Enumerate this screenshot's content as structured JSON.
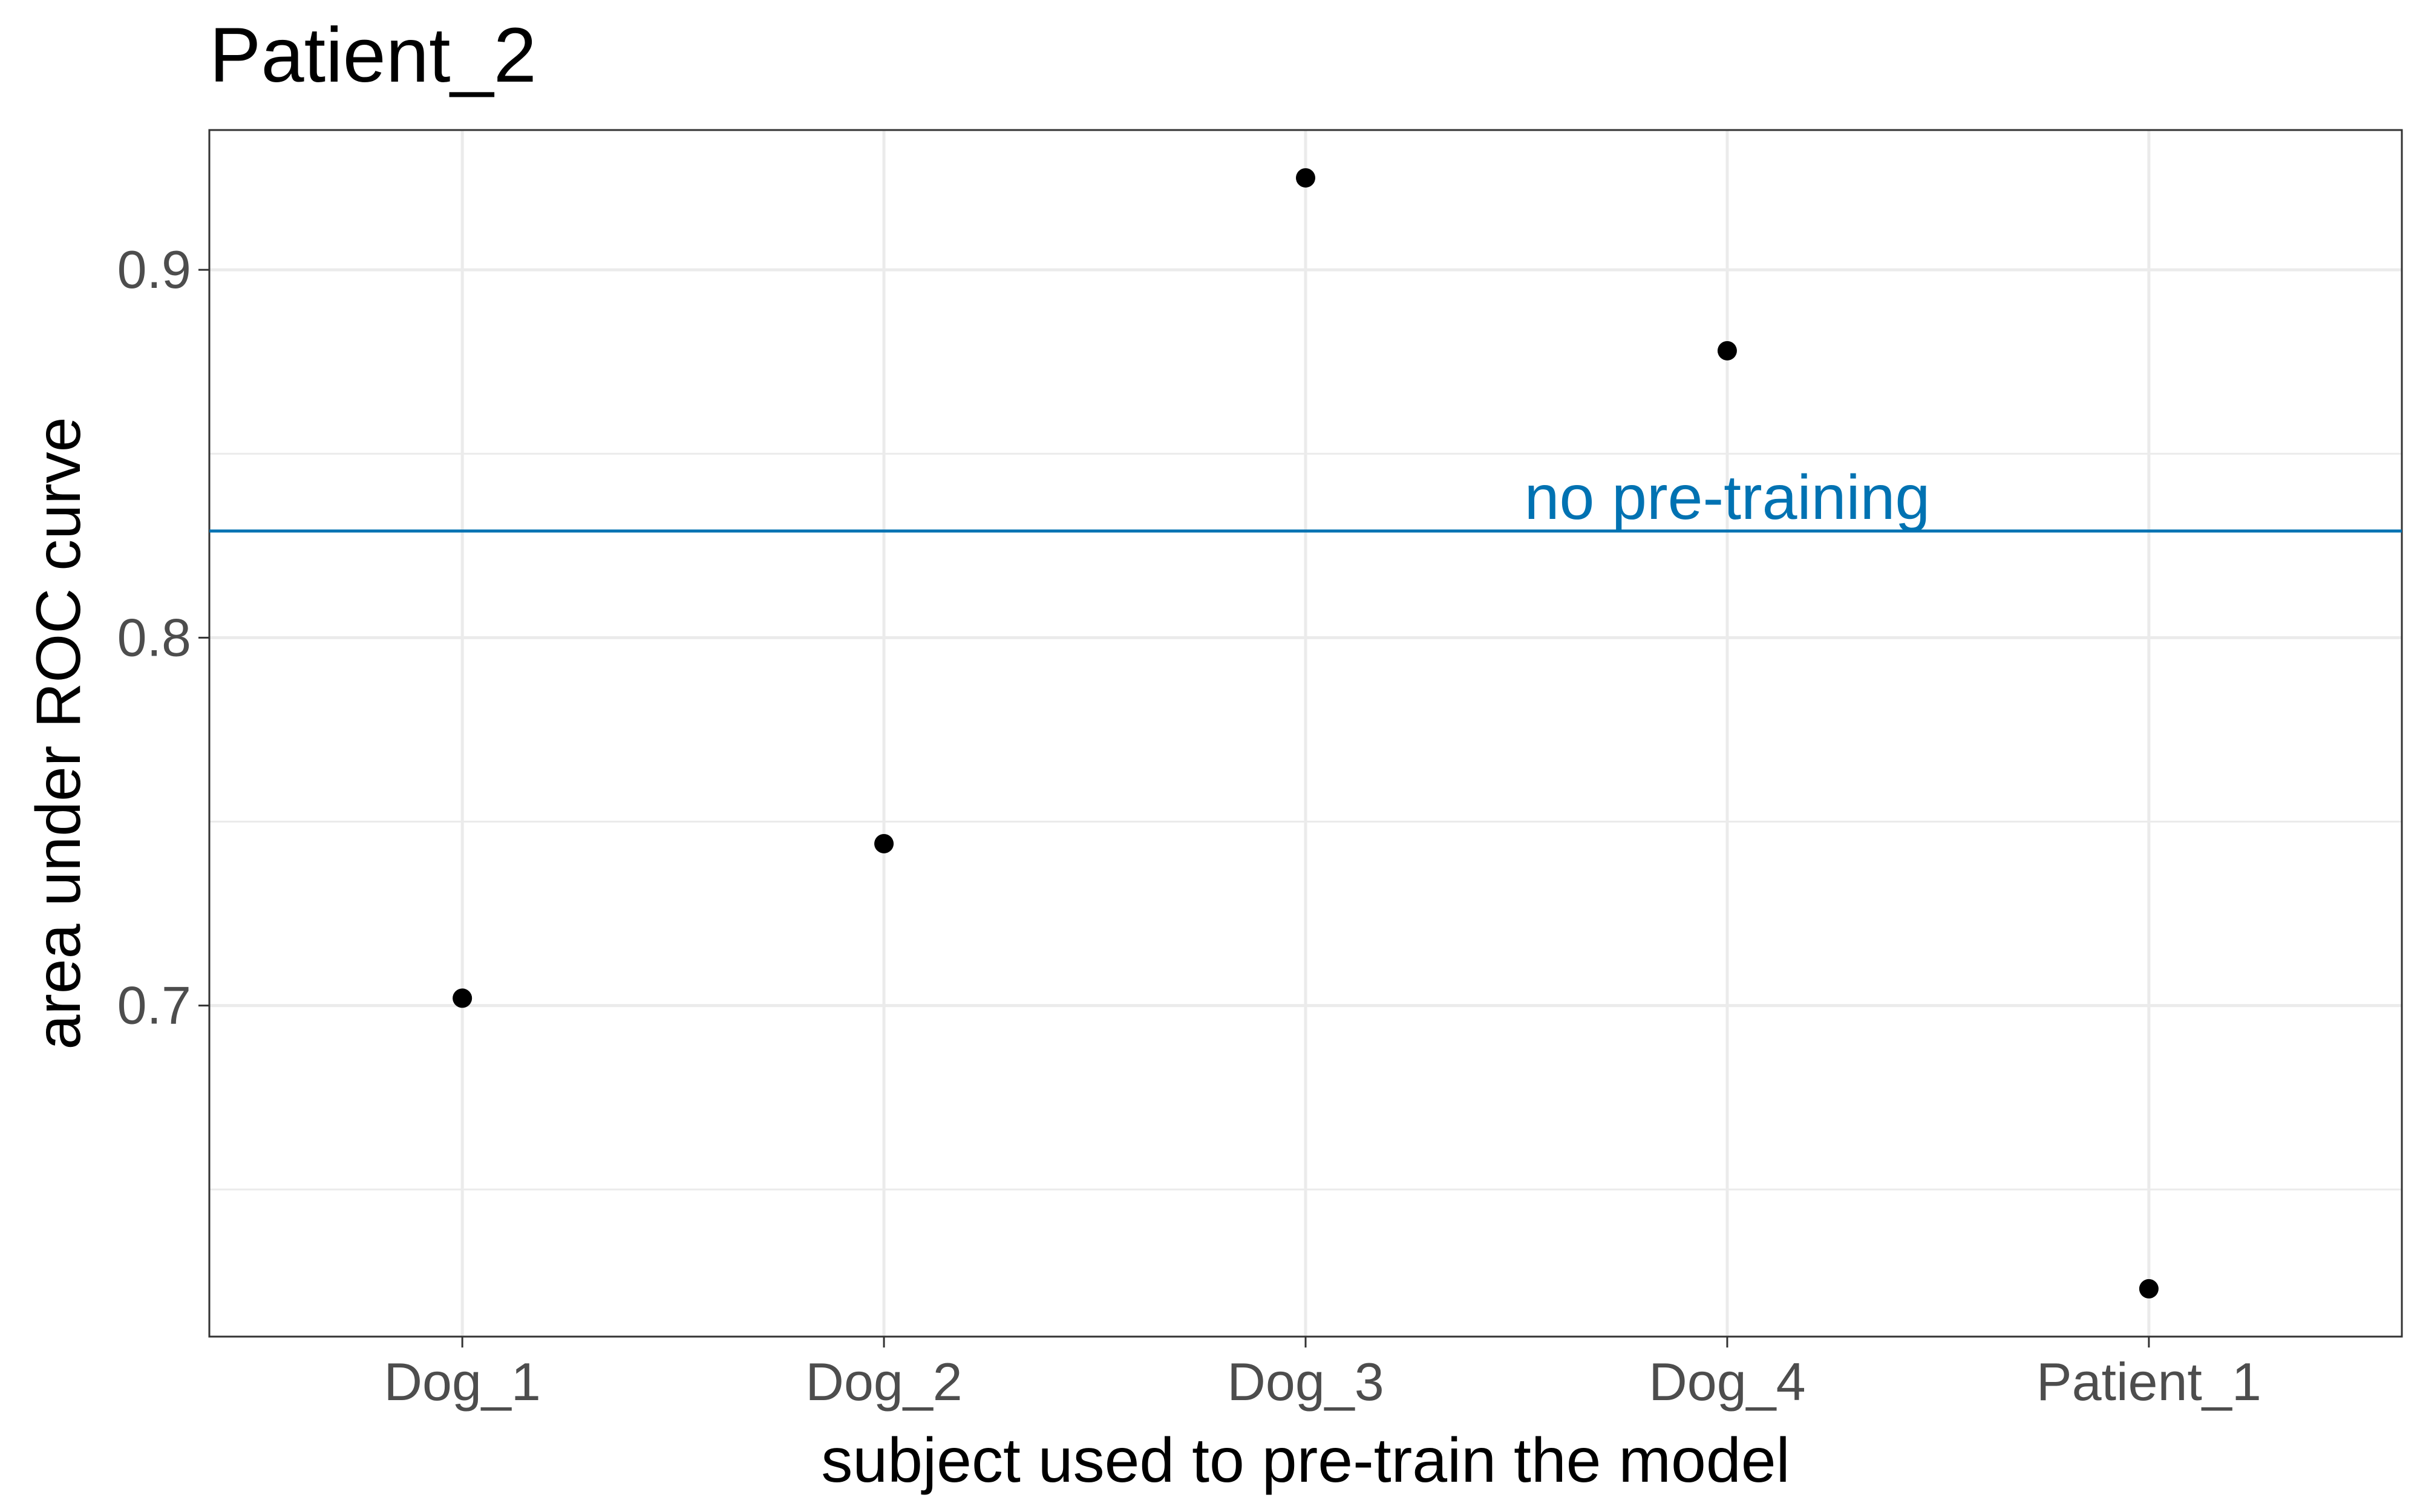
{
  "chart_data": {
    "type": "scatter",
    "title": "Patient_2",
    "xlabel": "subject used to pre-train the model",
    "ylabel": "area under ROC curve",
    "categories": [
      "Dog_1",
      "Dog_2",
      "Dog_3",
      "Dog_4",
      "Patient_1"
    ],
    "values": [
      0.702,
      0.744,
      0.925,
      0.878,
      0.623
    ],
    "ylim": [
      0.61,
      0.938
    ],
    "yticks": [
      0.7,
      0.8,
      0.9
    ],
    "ytick_labels": [
      "0.7",
      "0.8",
      "0.9"
    ],
    "grid": true,
    "reference_line": {
      "label": "no pre-training",
      "value": 0.829,
      "color": "#0072B2"
    },
    "point_color": "#000000"
  }
}
